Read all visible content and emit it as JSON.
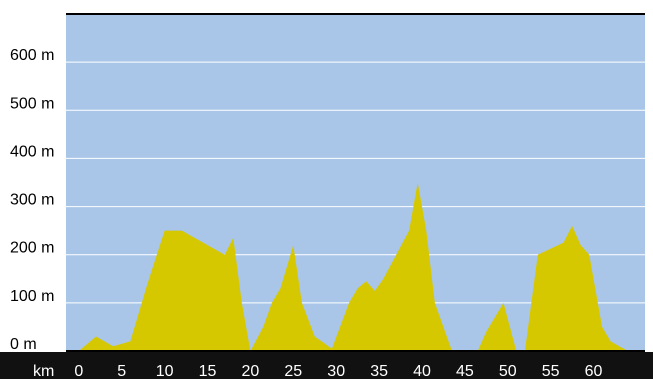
{
  "chart_data": {
    "type": "area",
    "title": "",
    "xlabel": "",
    "ylabel": "",
    "x_unit_label": "km",
    "y_unit": "m",
    "xlim": [
      -1.5,
      66
    ],
    "ylim": [
      0,
      700
    ],
    "y_ticks": [
      0,
      100,
      200,
      300,
      400,
      500,
      600
    ],
    "y_tick_labels": [
      "0 m",
      "100 m",
      "200 m",
      "300 m",
      "400 m",
      "500 m",
      "600 m"
    ],
    "x_ticks": [
      0,
      5,
      10,
      15,
      20,
      25,
      30,
      35,
      40,
      45,
      50,
      55,
      60
    ],
    "x_tick_labels": [
      "0",
      "5",
      "10",
      "15",
      "20",
      "25",
      "30",
      "35",
      "40",
      "45",
      "50",
      "55",
      "60"
    ],
    "grid": true,
    "colors": {
      "plot_background": "#a9c6e8",
      "area_fill": "#d6c800",
      "grid_line": "#ffffff",
      "axis_bar": "#111111",
      "baseline": "#000000",
      "top_line": "#000000"
    },
    "series": [
      {
        "x": [
          0,
          2,
          4,
          6,
          8,
          10,
          12,
          14,
          17,
          18,
          19,
          20,
          21.5,
          22.5,
          23.5,
          25,
          26,
          27.5,
          29.5,
          31.5,
          32.5,
          33.5,
          34.5,
          35.5,
          38.5,
          39.5,
          40.5,
          41.5,
          43.5,
          45,
          46.5,
          47.5,
          49.5,
          51,
          52,
          53.5,
          56.5,
          57.5,
          58.5,
          59.5,
          61,
          62,
          64
        ],
        "y": [
          0,
          30,
          10,
          20,
          140,
          250,
          250,
          230,
          200,
          235,
          100,
          0,
          50,
          100,
          130,
          220,
          100,
          30,
          5,
          100,
          130,
          145,
          125,
          150,
          250,
          350,
          250,
          100,
          0,
          0,
          0,
          40,
          100,
          0,
          0,
          200,
          225,
          260,
          220,
          200,
          50,
          20,
          0
        ]
      }
    ]
  }
}
